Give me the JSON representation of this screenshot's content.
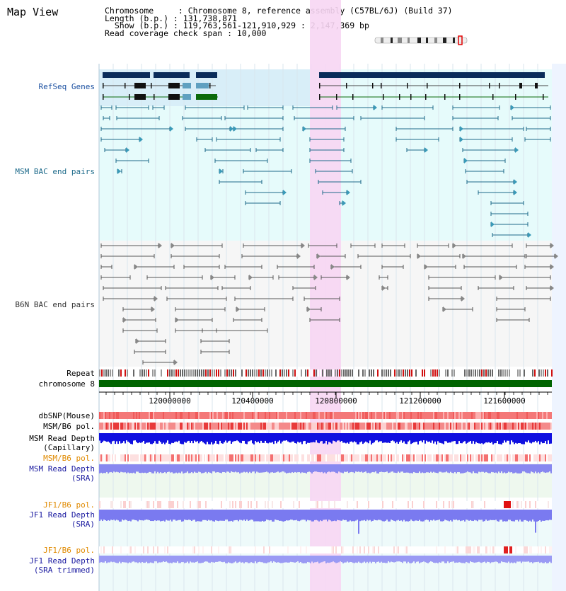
{
  "title": "Map View",
  "info": {
    "line1": "Chromosome     : Chromosome 8, reference assembly (C57BL/6J) (Build 37)",
    "line2": "Length (b.p.) : 131,738,871",
    "line3": "Show (b.p.) : 119,763,561-121,910,929 : 2,147,369 bp",
    "line4": "Read coverage check span : 10,000"
  },
  "tracks": {
    "refseq": "RefSeq Genes",
    "msm_bac": "MSM BAC end pairs",
    "b6n_bac": "B6N BAC end pairs",
    "repeat": "Repeat",
    "chromosome": "chromosome 8",
    "dbsnp": "dbSNP(Mouse)",
    "msm_b6_pol_1": "MSM/B6 pol.",
    "msm_depth_cap_1": "MSM Read Depth",
    "msm_depth_cap_2": "(Capillary)",
    "msm_b6_pol_2": "MSM/B6 pol.",
    "msm_depth_sra_1": "MSM Read Depth",
    "msm_depth_sra_2": "(SRA)",
    "jf1_b6_pol_1": "JF1/B6 pol.",
    "jf1_depth_sra_1": "JF1 Read Depth",
    "jf1_depth_sra_2": "(SRA)",
    "jf1_b6_pol_2": "JF1/B6 pol.",
    "jf1_depth_trim_1": "JF1 Read Depth",
    "jf1_depth_trim_2": "(SRA trimmed)"
  },
  "axis": {
    "ticks": [
      "120000000",
      "120400000",
      "120800000",
      "121200000",
      "121600000"
    ]
  },
  "colors": {
    "refseq_label": "#1a4fa0",
    "msm_label": "#1d6a8a",
    "b6n_label": "#333333",
    "pol_label": "#e08a00",
    "depth_label": "#1a1aa0",
    "chromosome_bar": "#006400",
    "highlight": "#f7d6f3"
  }
}
